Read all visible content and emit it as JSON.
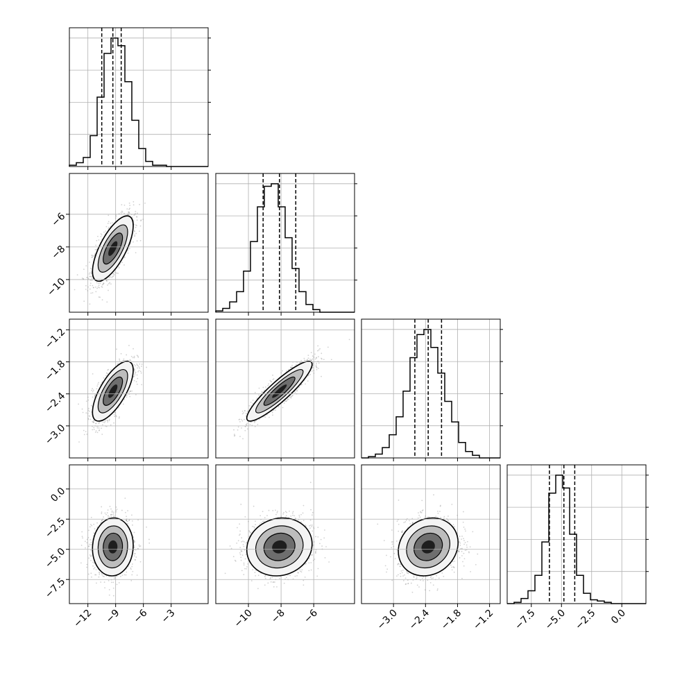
{
  "chart_data": {
    "type": "corner",
    "grid": true,
    "lines": {
      "quantile_style": "dashed",
      "contour_color": "#000000",
      "sample_color": "#9a9a9a"
    },
    "parameters": [
      {
        "range": [
          -14,
          1
        ],
        "ticks": [
          -12,
          -9,
          -6,
          -3
        ],
        "tick_labels": [
          "−12",
          "−9",
          "−6",
          "−3"
        ],
        "mean": -9.3,
        "sd": 1.1,
        "quantiles": [
          -10.5,
          -9.3,
          -8.4
        ],
        "hist": [
          0.01,
          0.03,
          0.07,
          0.24,
          0.54,
          0.88,
          1.0,
          0.94,
          0.66,
          0.36,
          0.14,
          0.04,
          0.01,
          0.01,
          0,
          0,
          0,
          0,
          0,
          0
        ]
      },
      {
        "range": [
          -12,
          -3.5
        ],
        "ticks": [
          -10,
          -8,
          -6
        ],
        "tick_labels": [
          "−10",
          "−8",
          "−6"
        ],
        "mean": -8.1,
        "sd": 1.0,
        "quantiles": [
          -9.1,
          -8.1,
          -7.1
        ],
        "hist": [
          0.01,
          0.03,
          0.08,
          0.16,
          0.32,
          0.55,
          0.82,
          0.98,
          1.0,
          0.82,
          0.58,
          0.34,
          0.16,
          0.06,
          0.02,
          0,
          0,
          0,
          0,
          0
        ]
      },
      {
        "range": [
          -3.6,
          -1.0
        ],
        "ticks": [
          -3.0,
          -2.4,
          -1.8,
          -1.2
        ],
        "tick_labels": [
          "−3.0",
          "−2.4",
          "−1.8",
          "−1.2"
        ],
        "mean": -2.35,
        "sd": 0.28,
        "quantiles": [
          -2.6,
          -2.35,
          -2.1
        ],
        "hist": [
          0,
          0.01,
          0.03,
          0.08,
          0.18,
          0.32,
          0.52,
          0.78,
          0.96,
          1.0,
          0.86,
          0.66,
          0.44,
          0.28,
          0.12,
          0.05,
          0.02,
          0,
          0,
          0
        ]
      },
      {
        "range": [
          -9.5,
          2.0
        ],
        "ticks": [
          -7.5,
          -5.0,
          -2.5,
          0.0
        ],
        "tick_labels": [
          "−7.5",
          "−5.0",
          "−2.5",
          "0.0"
        ],
        "y_tick_labels": [
          "0.0",
          "−2.5",
          "−5.0",
          "−7.5"
        ],
        "mean": -4.8,
        "sd": 1.2,
        "quantiles": [
          -6.0,
          -4.8,
          -3.9
        ],
        "hist": [
          0,
          0.01,
          0.04,
          0.1,
          0.22,
          0.48,
          0.86,
          1.0,
          0.9,
          0.54,
          0.22,
          0.08,
          0.03,
          0.02,
          0.01,
          0,
          0,
          0,
          0,
          0
        ]
      }
    ],
    "correlations": [
      [
        1.0,
        0.7,
        0.7,
        0.05
      ],
      [
        0.7,
        1.0,
        0.9,
        0.1
      ],
      [
        0.7,
        0.9,
        1.0,
        0.15
      ],
      [
        0.05,
        0.1,
        0.15,
        1.0
      ]
    ]
  }
}
